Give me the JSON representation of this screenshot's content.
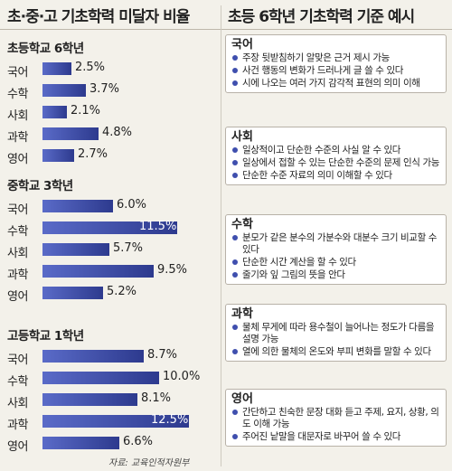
{
  "left_title": "초·중·고 기초학력 미달자 비율",
  "right_title": "초등 6학년 기초학력 기준 예시",
  "source": "자료: 교육인적자원부",
  "colors": {
    "bar_start": "#5a6bc8",
    "bar_end": "#2d3a8e",
    "bullet": "#3f4fae",
    "background": "#f3f1ea"
  },
  "chart_data": {
    "type": "bar",
    "orientation": "horizontal",
    "unit": "%",
    "categories": [
      "국어",
      "수학",
      "사회",
      "과학",
      "영어"
    ],
    "series": [
      {
        "name": "초등학교 6학년",
        "values": [
          2.5,
          3.7,
          2.1,
          4.8,
          2.7
        ],
        "labels": [
          "2.5%",
          "3.7%",
          "2.1%",
          "4.8%",
          "2.7%"
        ]
      },
      {
        "name": "중학교 3학년",
        "values": [
          6.0,
          11.5,
          5.7,
          9.5,
          5.2
        ],
        "labels": [
          "6.0%",
          "11.5%",
          "5.7%",
          "9.5%",
          "5.2%"
        ]
      },
      {
        "name": "고등학교 1학년",
        "values": [
          8.7,
          10.0,
          8.1,
          12.5,
          6.6
        ],
        "labels": [
          "8.7%",
          "10.0%",
          "8.1%",
          "12.5%",
          "6.6%"
        ]
      }
    ],
    "xlim": [
      0,
      13
    ]
  },
  "criteria": [
    {
      "subject": "국어",
      "items": [
        "주장 뒷받침하기 알맞은 근거 제시 가능",
        "사건 행동의 변화가 드러나게 글 쓸 수 있다",
        "시에 나오는 여러 가지 감각적 표현의 의미 이해"
      ]
    },
    {
      "subject": "사회",
      "items": [
        "일상적이고 단순한 수준의 사실 알 수 있다",
        "일상에서 접할 수 있는 단순한 수준의 문제 인식 가능",
        "단순한 수준 자료의 의미 이해할 수 있다"
      ]
    },
    {
      "subject": "수학",
      "items": [
        "분모가 같은 분수의 가분수와 대분수 크기 비교할 수 있다",
        "단순한 시간 계산을 할 수 있다",
        "줄기와 잎 그림의 뜻을 안다"
      ]
    },
    {
      "subject": "과학",
      "items": [
        "물체 무게에 따라 용수철이 늘어나는 정도가 다름을 설명 가능",
        "열에 의한 물체의 온도와 부피 변화를 말할 수 있다"
      ]
    },
    {
      "subject": "영어",
      "items": [
        "간단하고 친숙한 문장 대화 듣고 주제, 요지, 상황, 의도 이해 가능",
        "주어진 낱말을 대문자로 바꾸어 쓸 수 있다"
      ]
    }
  ]
}
